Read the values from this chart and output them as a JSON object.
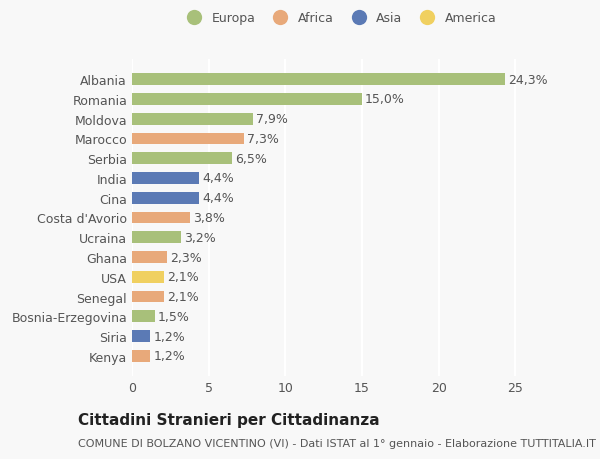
{
  "categories": [
    "Albania",
    "Romania",
    "Moldova",
    "Marocco",
    "Serbia",
    "India",
    "Cina",
    "Costa d'Avorio",
    "Ucraina",
    "Ghana",
    "USA",
    "Senegal",
    "Bosnia-Erzegovina",
    "Siria",
    "Kenya"
  ],
  "values": [
    24.3,
    15.0,
    7.9,
    7.3,
    6.5,
    4.4,
    4.4,
    3.8,
    3.2,
    2.3,
    2.1,
    2.1,
    1.5,
    1.2,
    1.2
  ],
  "labels": [
    "24,3%",
    "15,0%",
    "7,9%",
    "7,3%",
    "6,5%",
    "4,4%",
    "4,4%",
    "3,8%",
    "3,2%",
    "2,3%",
    "2,1%",
    "2,1%",
    "1,5%",
    "1,2%",
    "1,2%"
  ],
  "continents": [
    "Europa",
    "Europa",
    "Europa",
    "Africa",
    "Europa",
    "Asia",
    "Asia",
    "Africa",
    "Europa",
    "Africa",
    "America",
    "Africa",
    "Europa",
    "Asia",
    "Africa"
  ],
  "colors": {
    "Europa": "#a8c07a",
    "Africa": "#e8a97a",
    "Asia": "#5b7ab5",
    "America": "#f0d060"
  },
  "legend_order": [
    "Europa",
    "Africa",
    "Asia",
    "America"
  ],
  "xlim": [
    0,
    27
  ],
  "xticks": [
    0,
    5,
    10,
    15,
    20,
    25
  ],
  "title": "Cittadini Stranieri per Cittadinanza",
  "subtitle": "COMUNE DI BOLZANO VICENTINO (VI) - Dati ISTAT al 1° gennaio - Elaborazione TUTTITALIA.IT",
  "background_color": "#f8f8f8",
  "grid_color": "#ffffff",
  "title_fontsize": 11,
  "subtitle_fontsize": 8,
  "tick_fontsize": 9,
  "label_fontsize": 9
}
